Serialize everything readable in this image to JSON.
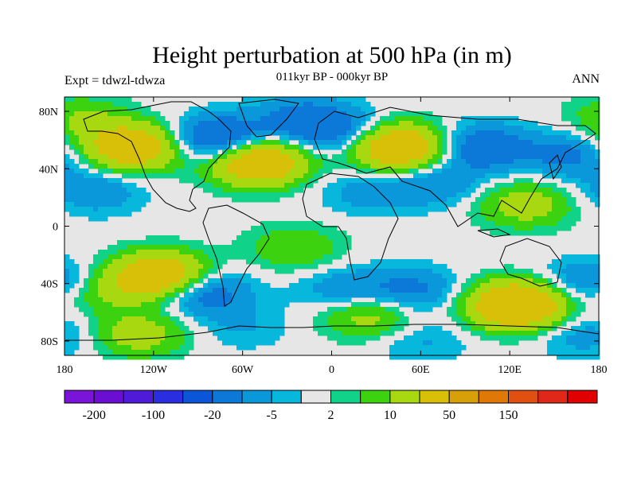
{
  "title": "Height perturbation at 500 hPa (in m)",
  "subtitle": "011kyr BP - 000kyr BP",
  "left_label": "Expt = tdwzl-tdwza",
  "right_label": "ANN",
  "map": {
    "lat_ticks": [
      "80N",
      "40N",
      "0",
      "40S",
      "80S"
    ],
    "lat_values": [
      80,
      40,
      0,
      -40,
      -80
    ],
    "lon_ticks": [
      "180",
      "120W",
      "60W",
      "0",
      "60E",
      "120E",
      "180"
    ],
    "lon_values": [
      -180,
      -120,
      -60,
      0,
      60,
      120,
      180
    ],
    "lat_range": [
      -90,
      90
    ],
    "lon_range": [
      -180,
      180
    ],
    "background_color": "#e6e6e6"
  },
  "colorbar": {
    "colors": [
      "#7a14d9",
      "#6a0fd2",
      "#4f1bd8",
      "#2a2ee0",
      "#0a55d8",
      "#0c78d8",
      "#0b98da",
      "#08b8dc",
      "#e6e6e6",
      "#10d288",
      "#3dd20f",
      "#a8d810",
      "#d8c008",
      "#d8a008",
      "#e07808",
      "#e05010",
      "#e02818",
      "#e00000"
    ],
    "labels": [
      "-200",
      "-100",
      "-20",
      "-5",
      "2",
      "10",
      "50",
      "150"
    ]
  },
  "fields": [
    {
      "lon": -135,
      "lat": 55,
      "v": 35
    },
    {
      "lon": -75,
      "lat": 60,
      "v": -25
    },
    {
      "lon": -50,
      "lat": 45,
      "v": 40
    },
    {
      "lon": -20,
      "lat": 75,
      "v": -12
    },
    {
      "lon": 5,
      "lat": 65,
      "v": -15
    },
    {
      "lon": 45,
      "lat": 55,
      "v": 40
    },
    {
      "lon": 25,
      "lat": 25,
      "v": -8
    },
    {
      "lon": 70,
      "lat": 30,
      "v": -10
    },
    {
      "lon": 100,
      "lat": 55,
      "v": -18
    },
    {
      "lon": 160,
      "lat": 50,
      "v": -12
    },
    {
      "lon": 130,
      "lat": 15,
      "v": 15
    },
    {
      "lon": -170,
      "lat": 75,
      "v": 10
    },
    {
      "lon": -160,
      "lat": 25,
      "v": -10
    },
    {
      "lon": -115,
      "lat": -35,
      "v": 40
    },
    {
      "lon": -160,
      "lat": -45,
      "v": 12
    },
    {
      "lon": -90,
      "lat": -45,
      "v": -20
    },
    {
      "lon": -25,
      "lat": -15,
      "v": 10
    },
    {
      "lon": 10,
      "lat": -45,
      "v": -10
    },
    {
      "lon": 55,
      "lat": -45,
      "v": -12
    },
    {
      "lon": 25,
      "lat": -62,
      "v": 15
    },
    {
      "lon": 125,
      "lat": -55,
      "v": 45
    },
    {
      "lon": 175,
      "lat": -40,
      "v": -15
    },
    {
      "lon": -130,
      "lat": -75,
      "v": 15
    },
    {
      "lon": -60,
      "lat": -70,
      "v": -5
    },
    {
      "lon": 60,
      "lat": -80,
      "v": -6
    },
    {
      "lon": 170,
      "lat": -75,
      "v": -8
    }
  ]
}
